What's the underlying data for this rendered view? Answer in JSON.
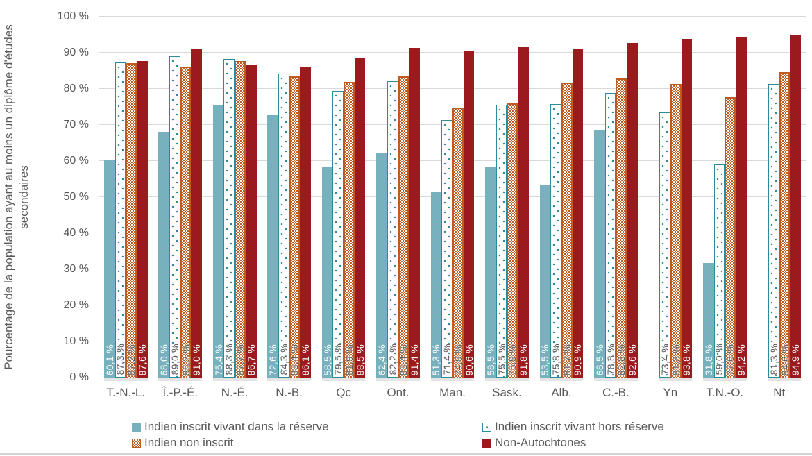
{
  "y_axis": {
    "title_line1": "Pourcentage de la population ayant au moins un",
    "title_line2": "diplôme d'études secondaires"
  },
  "colors": {
    "background": "#FFFFFF",
    "gridline": "#D9D9D9",
    "axis_line": "#C6C6C6",
    "text": "#595959",
    "series_teal": "#77B1BE",
    "series_teal_outline": "#2E8B9C",
    "series_orange": "#C05A1E",
    "series_dark_red": "#9A1A1D"
  },
  "chart_data": {
    "type": "bar",
    "title": "",
    "xlabel": "",
    "ylabel": "Pourcentage de la population ayant au moins un diplôme d'études secondaires",
    "ylim": [
      0,
      100
    ],
    "grid": true,
    "legend_position": "bottom",
    "value_label_format": "one decimal, comma as decimal separator, suffix ' %'",
    "y_ticks": [
      {
        "value": 0,
        "label": "0 %"
      },
      {
        "value": 10,
        "label": "10 %"
      },
      {
        "value": 20,
        "label": "20 %"
      },
      {
        "value": 30,
        "label": "30 %"
      },
      {
        "value": 40,
        "label": "40 %"
      },
      {
        "value": 50,
        "label": "50 %"
      },
      {
        "value": 60,
        "label": "60 %"
      },
      {
        "value": 70,
        "label": "70 %"
      },
      {
        "value": 80,
        "label": "80 %"
      },
      {
        "value": 90,
        "label": "90 %"
      },
      {
        "value": 100,
        "label": "100 %"
      }
    ],
    "categories": [
      "T.-N.-L.",
      "Î.-P.-É.",
      "N.-É.",
      "N.-B.",
      "Qc",
      "Ont.",
      "Man.",
      "Sask.",
      "Alb.",
      "C.-B.",
      "Yn",
      "T.N.-O.",
      "Nt"
    ],
    "series": [
      {
        "name": "Indien inscrit vivant dans la réserve",
        "pattern": "solid",
        "color": "#77B1BE",
        "label_color": "#FFFFFF",
        "values": [
          60.1,
          68.0,
          75.4,
          72.6,
          58.5,
          62.4,
          51.3,
          58.5,
          53.5,
          68.5,
          null,
          31.8,
          null
        ]
      },
      {
        "name": "Indien inscrit vivant hors réserve",
        "pattern": "dotted-outline",
        "color": "#2E8B9C",
        "label_color": "#595959",
        "values": [
          87.3,
          89.0,
          88.3,
          84.3,
          79.5,
          82.2,
          71.4,
          75.5,
          75.8,
          78.8,
          73.4,
          59.0,
          81.3
        ]
      },
      {
        "name": "Indien non inscrit",
        "pattern": "checker",
        "color": "#C05A1E",
        "label_color": "#595959",
        "values": [
          87.2,
          86.2,
          87.7,
          83.4,
          81.9,
          83.4,
          74.9,
          75.9,
          81.7,
          82.8,
          81.3,
          77.6,
          84.6
        ]
      },
      {
        "name": "Non-Autochtones",
        "pattern": "solid",
        "color": "#9A1A1D",
        "label_color": "#FFFFFF",
        "values": [
          87.6,
          91.0,
          86.7,
          86.1,
          88.5,
          91.4,
          90.6,
          91.8,
          90.9,
          92.6,
          93.8,
          94.2,
          94.9
        ]
      }
    ]
  }
}
